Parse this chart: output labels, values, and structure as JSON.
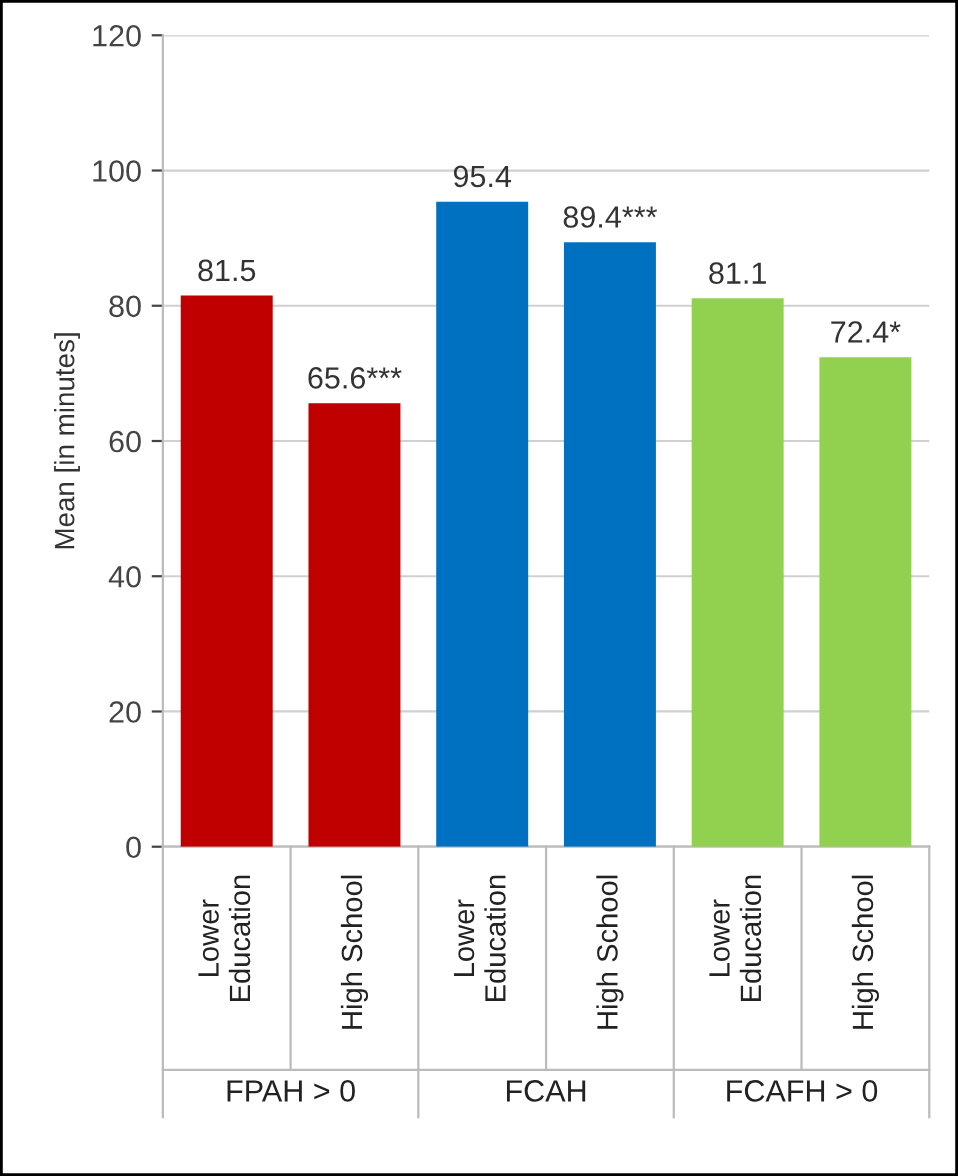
{
  "chart_data": {
    "type": "bar",
    "ylabel": "Mean [in minutes]",
    "categories": [
      "Lower\nEducation",
      "High School",
      "Lower\nEducation",
      "High School",
      "Lower\nEducation",
      "High School"
    ],
    "values": [
      81.5,
      65.6,
      95.4,
      89.4,
      81.1,
      72.4
    ],
    "value_labels": [
      "81.5",
      "65.6***",
      "95.4",
      "89.4***",
      "81.1",
      "72.4*"
    ],
    "colors": [
      "#c00000",
      "#c00000",
      "#0070c0",
      "#0070c0",
      "#92d050",
      "#92d050"
    ],
    "annotations": [
      "FPAH > 0",
      "FCAH",
      "FCAFH > 0"
    ],
    "ylim": [
      0,
      120
    ],
    "yticks": [
      0,
      20,
      40,
      60,
      80,
      100,
      120
    ],
    "grid": "y"
  }
}
